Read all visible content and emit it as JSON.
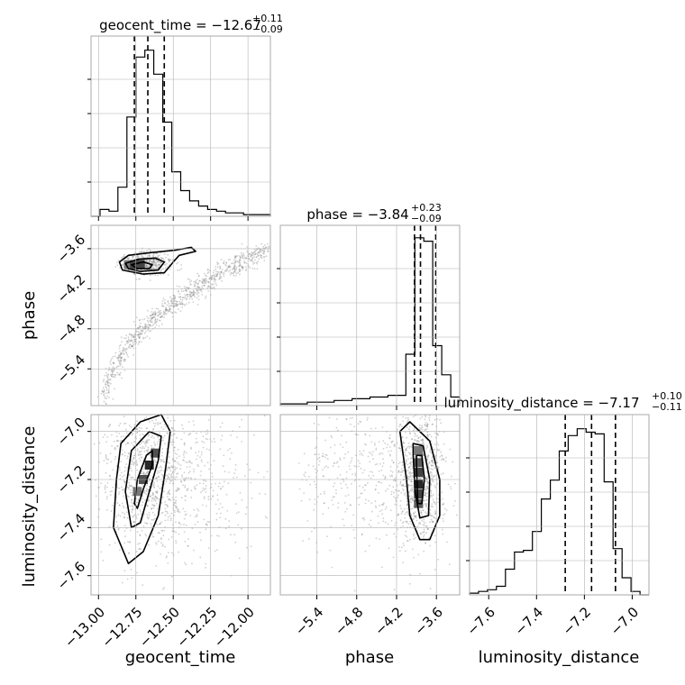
{
  "figure": {
    "params": [
      "geocent_time",
      "phase",
      "luminosity_distance"
    ],
    "titles": [
      {
        "main": "geocent_time = −12.67",
        "up": "+0.11",
        "down": "−0.09"
      },
      {
        "main": "phase = −3.84",
        "up": "+0.23",
        "down": "−0.09"
      },
      {
        "main": "luminosity_distance = −7.17",
        "up": "+0.10",
        "down": "−0.11"
      }
    ],
    "xlabels": [
      "geocent_time",
      "phase",
      "luminosity_distance"
    ],
    "ylabels": {
      "row1": "phase",
      "row2": "luminosity_distance"
    },
    "colors": {
      "line": "#000000",
      "grid": "#b0b0b0",
      "scatter": "#777777",
      "frame": "#aaaaaa"
    }
  },
  "chart_data": {
    "type": "corner",
    "parameters": [
      {
        "name": "geocent_time",
        "median": -12.67,
        "plus": 0.11,
        "minus": 0.09,
        "quantiles": [
          -12.76,
          -12.67,
          -12.56
        ],
        "range": [
          -13.05,
          -11.85
        ],
        "ticks": [
          -13.0,
          -12.75,
          -12.5,
          -12.25,
          -12.0
        ],
        "tick_labels": [
          "−13.00",
          "−12.75",
          "−12.50",
          "−12.25",
          "−12.00"
        ],
        "hist": [
          0,
          0.04,
          0.03,
          0.17,
          0.58,
          0.93,
          0.97,
          0.83,
          0.55,
          0.26,
          0.15,
          0.09,
          0.06,
          0.04,
          0.03,
          0.02,
          0.02,
          0.01,
          0.01,
          0.01
        ]
      },
      {
        "name": "phase",
        "median": -3.84,
        "plus": 0.23,
        "minus": 0.09,
        "quantiles": [
          -3.93,
          -3.84,
          -3.61
        ],
        "range": [
          -5.95,
          -3.25
        ],
        "ticks": [
          -5.4,
          -4.8,
          -4.2,
          -3.6
        ],
        "tick_labels": [
          "−5.4",
          "−4.8",
          "−4.2",
          "−3.6"
        ],
        "hist": [
          0.01,
          0.01,
          0.01,
          0.02,
          0.02,
          0.02,
          0.03,
          0.03,
          0.04,
          0.04,
          0.05,
          0.05,
          0.06,
          0.06,
          0.3,
          0.98,
          0.96,
          0.35,
          0.18,
          0.05
        ]
      },
      {
        "name": "luminosity_distance",
        "median": -7.17,
        "plus": 0.1,
        "minus": 0.11,
        "quantiles": [
          -7.28,
          -7.17,
          -7.07
        ],
        "range": [
          -7.68,
          -6.93
        ],
        "ticks": [
          -7.6,
          -7.4,
          -7.2,
          -7.0
        ],
        "tick_labels": [
          "−7.6",
          "−7.4",
          "−7.2",
          "−7.0"
        ],
        "hist": [
          0.01,
          0.02,
          0.03,
          0.05,
          0.15,
          0.25,
          0.26,
          0.37,
          0.56,
          0.67,
          0.84,
          0.93,
          0.97,
          0.95,
          0.94,
          0.66,
          0.27,
          0.1,
          0.02,
          0
        ]
      }
    ],
    "y_tick_labels": {
      "phase": [
        "−3.6",
        "−4.2",
        "−4.8",
        "−5.4"
      ],
      "luminosity_distance": [
        "−7.0",
        "−7.2",
        "−7.4",
        "−7.6"
      ]
    },
    "joint": [
      {
        "x": "geocent_time",
        "y": "phase",
        "peak": [
          -12.76,
          -3.84
        ],
        "mode_x": [
          -12.8,
          -12.76,
          -12.72
        ],
        "mode_y": -3.84,
        "contours": [
          [
            [
              -12.86,
              -3.8
            ],
            [
              -12.8,
              -3.7
            ],
            [
              -12.66,
              -3.66
            ],
            [
              -12.48,
              -3.62
            ],
            [
              -12.38,
              -3.58
            ],
            [
              -12.35,
              -3.64
            ],
            [
              -12.46,
              -3.7
            ],
            [
              -12.5,
              -3.8
            ],
            [
              -12.56,
              -3.96
            ],
            [
              -12.7,
              -3.98
            ],
            [
              -12.84,
              -3.92
            ]
          ],
          [
            [
              -12.82,
              -3.82
            ],
            [
              -12.74,
              -3.76
            ],
            [
              -12.62,
              -3.74
            ],
            [
              -12.56,
              -3.8
            ],
            [
              -12.6,
              -3.92
            ],
            [
              -12.72,
              -3.94
            ],
            [
              -12.8,
              -3.9
            ]
          ],
          [
            [
              -12.78,
              -3.84
            ],
            [
              -12.7,
              -3.8
            ],
            [
              -12.64,
              -3.84
            ],
            [
              -12.66,
              -3.9
            ],
            [
              -12.74,
              -3.9
            ]
          ]
        ]
      },
      {
        "x": "geocent_time",
        "y": "luminosity_distance",
        "mode_x": [
          -12.74,
          -12.7,
          -12.66,
          -12.62
        ],
        "mode_y": [
          -7.25,
          -7.2,
          -7.14,
          -7.09
        ],
        "contours": [
          [
            [
              -12.8,
              -7.55
            ],
            [
              -12.9,
              -7.4
            ],
            [
              -12.88,
              -7.2
            ],
            [
              -12.85,
              -7.05
            ],
            [
              -12.72,
              -6.96
            ],
            [
              -12.58,
              -6.93
            ],
            [
              -12.52,
              -7.0
            ],
            [
              -12.55,
              -7.15
            ],
            [
              -12.6,
              -7.35
            ],
            [
              -12.7,
              -7.5
            ]
          ],
          [
            [
              -12.78,
              -7.4
            ],
            [
              -12.82,
              -7.25
            ],
            [
              -12.78,
              -7.08
            ],
            [
              -12.66,
              -7.0
            ],
            [
              -12.58,
              -7.02
            ],
            [
              -12.6,
              -7.12
            ],
            [
              -12.66,
              -7.25
            ],
            [
              -12.72,
              -7.38
            ]
          ],
          [
            [
              -12.76,
              -7.3
            ],
            [
              -12.74,
              -7.2
            ],
            [
              -12.68,
              -7.1
            ],
            [
              -12.64,
              -7.08
            ],
            [
              -12.64,
              -7.14
            ],
            [
              -12.7,
              -7.24
            ],
            [
              -12.74,
              -7.32
            ]
          ]
        ]
      },
      {
        "x": "phase",
        "y": "luminosity_distance",
        "mode_x": -3.87,
        "mode_y": [
          -7.08,
          -7.13,
          -7.17,
          -7.22,
          -7.26,
          -7.3
        ],
        "contours": [
          [
            [
              -4.1,
              -7.1
            ],
            [
              -4.15,
              -7.0
            ],
            [
              -4.0,
              -6.96
            ],
            [
              -3.7,
              -7.04
            ],
            [
              -3.55,
              -7.2
            ],
            [
              -3.55,
              -7.35
            ],
            [
              -3.7,
              -7.45
            ],
            [
              -3.85,
              -7.45
            ],
            [
              -4.0,
              -7.35
            ],
            [
              -4.05,
              -7.2
            ]
          ],
          [
            [
              -3.95,
              -7.1
            ],
            [
              -3.95,
              -7.05
            ],
            [
              -3.8,
              -7.06
            ],
            [
              -3.7,
              -7.2
            ],
            [
              -3.72,
              -7.35
            ],
            [
              -3.85,
              -7.36
            ],
            [
              -3.92,
              -7.25
            ]
          ],
          [
            [
              -3.9,
              -7.15
            ],
            [
              -3.9,
              -7.1
            ],
            [
              -3.82,
              -7.1
            ],
            [
              -3.78,
              -7.2
            ],
            [
              -3.82,
              -7.3
            ],
            [
              -3.88,
              -7.3
            ]
          ]
        ]
      }
    ],
    "grid": true
  }
}
